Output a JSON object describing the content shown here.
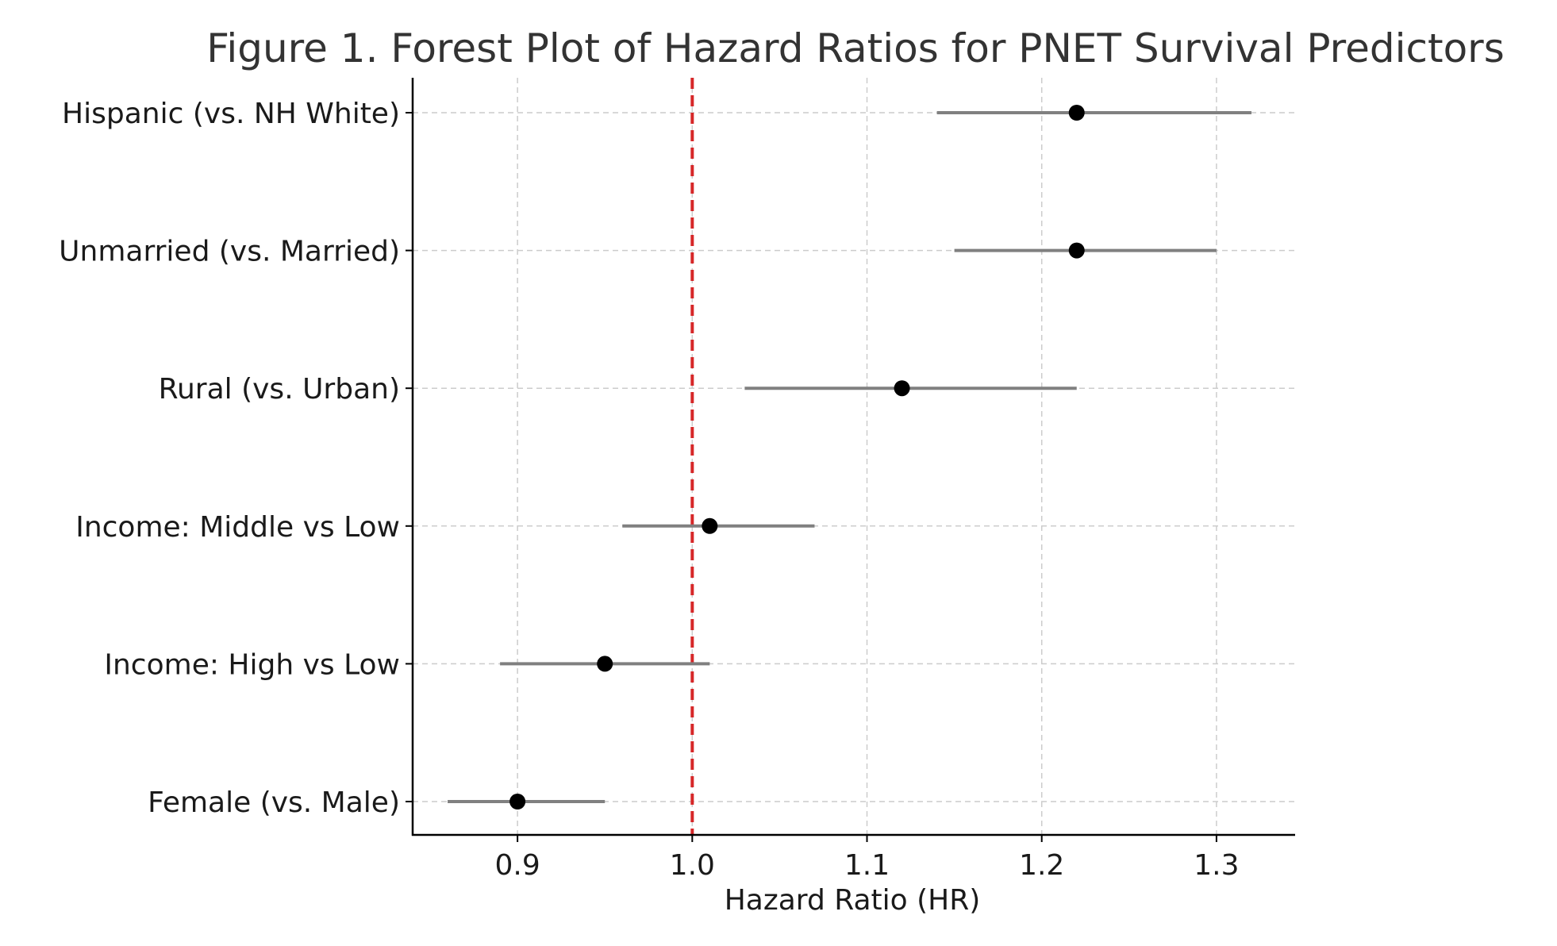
{
  "chart_data": {
    "type": "scatter",
    "subtype": "forest-plot",
    "title": "Figure 1. Forest Plot of Hazard Ratios for PNET Survival Predictors",
    "xlabel": "Hazard Ratio (HR)",
    "ylabel": "",
    "xlim": [
      0.84,
      1.345
    ],
    "x_ticks": [
      0.9,
      1.0,
      1.1,
      1.2,
      1.3
    ],
    "x_tick_labels": [
      "0.9",
      "1.0",
      "1.1",
      "1.2",
      "1.3"
    ],
    "grid": true,
    "reference_line": {
      "x": 1.0,
      "style": "dashed",
      "color": "#d62728"
    },
    "categories": [
      "Hispanic (vs. NH White)",
      "Unmarried (vs. Married)",
      "Rural (vs. Urban)",
      "Income: Middle vs Low",
      "Income: High vs Low",
      "Female (vs. Male)"
    ],
    "series": [
      {
        "hr": [
          1.22,
          1.22,
          1.12,
          1.01,
          0.95,
          0.9
        ],
        "ci_lower": [
          1.14,
          1.15,
          1.03,
          0.96,
          0.89,
          0.86
        ],
        "ci_upper": [
          1.32,
          1.3,
          1.22,
          1.07,
          1.01,
          0.95
        ]
      }
    ],
    "colors": {
      "point": "#000000",
      "ci_line": "#808080",
      "grid": "#cccccc",
      "axis": "#000000"
    }
  }
}
